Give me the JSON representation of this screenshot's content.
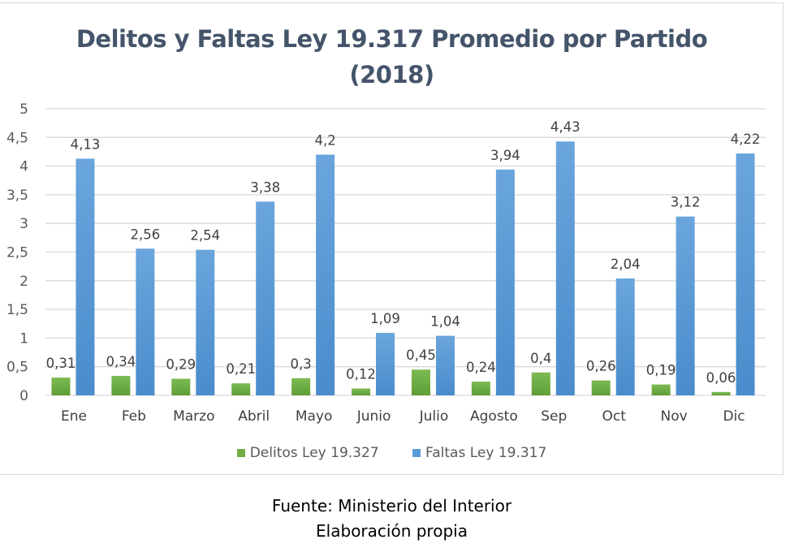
{
  "chart_data": {
    "type": "bar",
    "title": "Delitos y Faltas Ley 19.317 Promedio por Partido (2018)",
    "title_lines": [
      "Delitos y Faltas Ley 19.317 Promedio por Partido",
      "(2018)"
    ],
    "xlabel": "",
    "ylabel": "",
    "ylim": [
      0,
      5
    ],
    "yticks": [
      "0",
      "0,5",
      "1",
      "1,5",
      "2",
      "2,5",
      "3",
      "3,5",
      "4",
      "4,5",
      "5"
    ],
    "ytick_values": [
      0,
      0.5,
      1,
      1.5,
      2,
      2.5,
      3,
      3.5,
      4,
      4.5,
      5
    ],
    "grid": true,
    "legend_position": "bottom",
    "categories": [
      "Ene",
      "Feb",
      "Marzo",
      "Abril",
      "Mayo",
      "Junio",
      "Julio",
      "Agosto",
      "Sep",
      "Oct",
      "Nov",
      "Dic"
    ],
    "series": [
      {
        "name": "Delitos Ley 19.327",
        "color": "#70ad47",
        "values": [
          0.31,
          0.34,
          0.29,
          0.21,
          0.3,
          0.12,
          0.45,
          0.24,
          0.4,
          0.26,
          0.19,
          0.06
        ],
        "labels": [
          "0,31",
          "0,34",
          "0,29",
          "0,21",
          "0,3",
          "0,12",
          "0,45",
          "0,24",
          "0,4",
          "0,26",
          "0,19",
          "0,06"
        ]
      },
      {
        "name": "Faltas Ley 19.317",
        "color": "#5b9bd5",
        "values": [
          4.13,
          2.56,
          2.54,
          3.38,
          4.2,
          1.09,
          1.04,
          3.94,
          4.43,
          2.04,
          3.12,
          4.22
        ],
        "labels": [
          "4,13",
          "2,56",
          "2,54",
          "3,38",
          "4,2",
          "1,09",
          "1,04",
          "3,94",
          "4,43",
          "2,04",
          "3,12",
          "4,22"
        ]
      }
    ]
  },
  "footer": {
    "source": "Fuente: Ministerio del Interior",
    "note": "Elaboración propia"
  }
}
